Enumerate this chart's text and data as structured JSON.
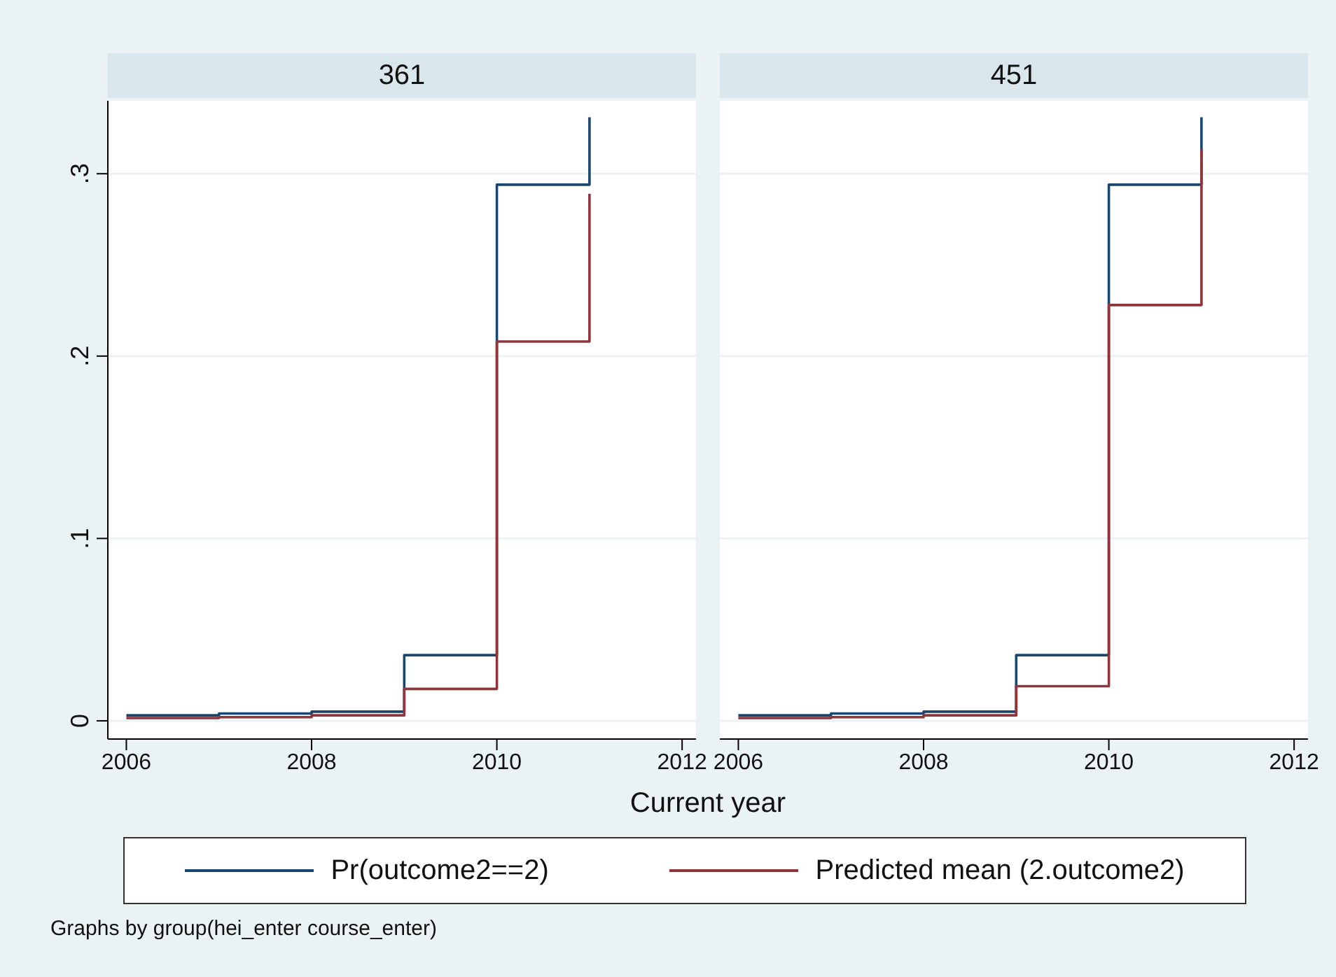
{
  "chart_data": [
    {
      "type": "step",
      "title": "361",
      "xlabel": "Current year",
      "x": [
        2006,
        2007,
        2008,
        2009,
        2010,
        2011
      ],
      "series": [
        {
          "name": "Pr(outcome2==2)",
          "color": "#1a476f",
          "values": [
            0.003,
            0.004,
            0.005,
            0.036,
            0.294,
            0.331
          ]
        },
        {
          "name": "Predicted mean (2.outcome2)",
          "color": "#90353b",
          "values": [
            0.0015,
            0.002,
            0.003,
            0.0175,
            0.208,
            0.289
          ]
        }
      ],
      "xlim": [
        2005.8,
        2012.15
      ],
      "xticks": [
        2006,
        2008,
        2010,
        2012
      ],
      "ylim": [
        -0.01,
        0.34
      ],
      "yticks": [
        0,
        {
          "value": 0.1,
          "label": ".1"
        },
        {
          "value": 0.2,
          "label": ".2"
        },
        {
          "value": 0.3,
          "label": ".3"
        }
      ],
      "grid": "y",
      "legend": "bottom",
      "marker": "none",
      "line_style": "solid",
      "annotations": [
        "Graphs by group(hei_enter course_enter)"
      ]
    },
    {
      "type": "step",
      "title": "451",
      "x": [
        2006,
        2007,
        2008,
        2009,
        2010,
        2011
      ],
      "series": [
        {
          "color": "#1a476f",
          "values": [
            0.003,
            0.004,
            0.005,
            0.036,
            0.294,
            0.331
          ]
        },
        {
          "color": "#90353b",
          "values": [
            0.0015,
            0.002,
            0.003,
            0.019,
            0.228,
            0.313
          ]
        }
      ],
      "xlim": [
        2005.8,
        2012.15
      ],
      "xticks": [
        2006,
        2008,
        2010,
        2012
      ],
      "ylim": [
        -0.01,
        0.34
      ],
      "yticks": [
        0,
        0.1,
        0.2,
        0.3
      ],
      "grid": "y",
      "marker": "none",
      "line_style": "solid",
      "tick_labels": "x"
    }
  ]
}
